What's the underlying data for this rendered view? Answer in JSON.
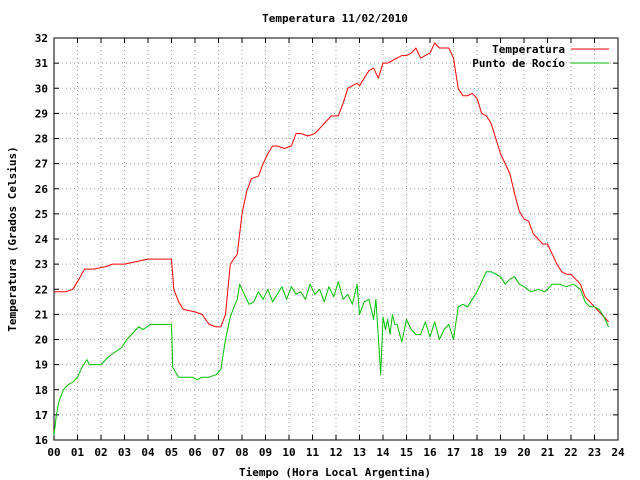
{
  "chart_data": {
    "type": "line",
    "title": "Temperatura 11/02/2010",
    "xlabel": "Tiempo (Hora Local Argentina)",
    "ylabel": "Temperatura (Grados Celsius)",
    "xlim": [
      0,
      24
    ],
    "ylim": [
      16,
      32
    ],
    "x_ticks": [
      0,
      1,
      2,
      3,
      4,
      5,
      6,
      7,
      8,
      9,
      10,
      11,
      12,
      13,
      14,
      15,
      16,
      17,
      18,
      19,
      20,
      21,
      22,
      23,
      24
    ],
    "x_tick_labels": [
      "00",
      "01",
      "02",
      "03",
      "04",
      "05",
      "06",
      "07",
      "08",
      "09",
      "10",
      "11",
      "12",
      "13",
      "14",
      "15",
      "16",
      "17",
      "18",
      "19",
      "20",
      "21",
      "22",
      "23",
      "24"
    ],
    "y_ticks": [
      16,
      17,
      18,
      19,
      20,
      21,
      22,
      23,
      24,
      25,
      26,
      27,
      28,
      29,
      30,
      31,
      32
    ],
    "grid": true,
    "legend_position": "top-right",
    "series": [
      {
        "name": "Temperatura",
        "color": "#ff0000",
        "x": [
          0,
          0.5,
          0.8,
          1.0,
          1.3,
          1.7,
          2.2,
          2.5,
          3.0,
          3.5,
          4.0,
          4.5,
          4.8,
          5.0,
          5.1,
          5.3,
          5.5,
          6.0,
          6.3,
          6.6,
          6.9,
          7.1,
          7.3,
          7.5,
          7.8,
          8.0,
          8.2,
          8.4,
          8.7,
          8.9,
          9.1,
          9.3,
          9.5,
          9.8,
          10.1,
          10.3,
          10.5,
          10.8,
          11.1,
          11.3,
          11.5,
          11.8,
          12.1,
          12.3,
          12.5,
          12.7,
          12.9,
          13.0,
          13.2,
          13.4,
          13.6,
          13.8,
          14.0,
          14.2,
          14.4,
          14.6,
          14.8,
          15.0,
          15.2,
          15.4,
          15.6,
          15.8,
          16.0,
          16.2,
          16.4,
          16.6,
          16.8,
          17.0,
          17.2,
          17.4,
          17.6,
          17.8,
          18.0,
          18.2,
          18.4,
          18.6,
          18.8,
          19.0,
          19.2,
          19.4,
          19.6,
          19.8,
          20.0,
          20.2,
          20.4,
          20.6,
          20.8,
          21.0,
          21.2,
          21.4,
          21.6,
          21.8,
          22.0,
          22.2,
          22.4,
          22.6,
          22.8,
          23.0,
          23.2,
          23.4,
          23.6
        ],
        "y": [
          21.9,
          21.9,
          22.0,
          22.3,
          22.8,
          22.8,
          22.9,
          23.0,
          23.0,
          23.1,
          23.2,
          23.2,
          23.2,
          23.2,
          22.0,
          21.5,
          21.2,
          21.1,
          21.0,
          20.6,
          20.5,
          20.5,
          21.0,
          23.0,
          23.4,
          25.0,
          25.9,
          26.4,
          26.5,
          27.0,
          27.4,
          27.7,
          27.7,
          27.6,
          27.7,
          28.2,
          28.2,
          28.1,
          28.2,
          28.4,
          28.6,
          28.9,
          28.9,
          29.4,
          30.0,
          30.1,
          30.2,
          30.1,
          30.4,
          30.7,
          30.8,
          30.4,
          31.0,
          31.0,
          31.1,
          31.2,
          31.3,
          31.3,
          31.4,
          31.6,
          31.2,
          31.3,
          31.4,
          31.8,
          31.6,
          31.6,
          31.6,
          31.2,
          30.0,
          29.7,
          29.7,
          29.8,
          29.6,
          29.0,
          28.9,
          28.6,
          28.0,
          27.4,
          27.0,
          26.6,
          25.8,
          25.1,
          24.8,
          24.7,
          24.2,
          24.0,
          23.8,
          23.8,
          23.4,
          23.0,
          22.7,
          22.6,
          22.6,
          22.4,
          22.2,
          21.7,
          21.5,
          21.3,
          21.1,
          20.9,
          20.7
        ]
      },
      {
        "name": "Punto de Rocío",
        "color": "#00c000",
        "x": [
          0,
          0.1,
          0.2,
          0.4,
          0.6,
          0.8,
          1.0,
          1.2,
          1.4,
          1.5,
          1.7,
          2.0,
          2.3,
          2.6,
          2.9,
          3.1,
          3.3,
          3.6,
          3.8,
          4.1,
          4.4,
          4.7,
          5.0,
          5.05,
          5.3,
          5.6,
          5.9,
          6.1,
          6.3,
          6.6,
          6.9,
          7.1,
          7.3,
          7.5,
          7.7,
          7.8,
          7.9,
          8.1,
          8.3,
          8.5,
          8.7,
          8.9,
          9.1,
          9.3,
          9.5,
          9.7,
          9.9,
          10.1,
          10.3,
          10.5,
          10.7,
          10.9,
          11.1,
          11.3,
          11.5,
          11.7,
          11.9,
          12.1,
          12.3,
          12.5,
          12.7,
          12.9,
          13.0,
          13.2,
          13.4,
          13.6,
          13.7,
          13.8,
          13.9,
          14.0,
          14.1,
          14.2,
          14.3,
          14.4,
          14.5,
          14.6,
          14.8,
          15.0,
          15.2,
          15.4,
          15.6,
          15.8,
          16.0,
          16.2,
          16.4,
          16.6,
          16.8,
          17.0,
          17.2,
          17.4,
          17.6,
          17.8,
          18.0,
          18.2,
          18.4,
          18.6,
          18.8,
          19.0,
          19.2,
          19.4,
          19.6,
          19.8,
          20.0,
          20.3,
          20.6,
          20.9,
          21.2,
          21.5,
          21.8,
          22.1,
          22.4,
          22.6,
          22.8,
          23.0,
          23.2,
          23.4,
          23.6
        ],
        "y": [
          16.2,
          17.0,
          17.5,
          18.0,
          18.2,
          18.3,
          18.5,
          18.9,
          19.2,
          19.0,
          19.0,
          19.0,
          19.3,
          19.5,
          19.7,
          20.0,
          20.2,
          20.5,
          20.4,
          20.6,
          20.6,
          20.6,
          20.6,
          18.9,
          18.5,
          18.5,
          18.5,
          18.4,
          18.5,
          18.5,
          18.6,
          18.8,
          20.0,
          20.9,
          21.4,
          21.6,
          22.2,
          21.8,
          21.4,
          21.5,
          21.9,
          21.6,
          22.0,
          21.5,
          21.8,
          22.1,
          21.6,
          22.1,
          21.8,
          21.9,
          21.6,
          22.2,
          21.8,
          22.0,
          21.5,
          22.1,
          21.7,
          22.3,
          21.6,
          21.8,
          21.4,
          22.2,
          21.0,
          21.5,
          21.6,
          20.8,
          21.6,
          20.1,
          18.6,
          20.9,
          20.4,
          20.8,
          20.2,
          21.0,
          20.6,
          20.6,
          19.9,
          20.8,
          20.4,
          20.2,
          20.2,
          20.7,
          20.1,
          20.7,
          20.0,
          20.4,
          20.6,
          20.0,
          21.3,
          21.4,
          21.3,
          21.6,
          21.9,
          22.3,
          22.7,
          22.7,
          22.6,
          22.5,
          22.2,
          22.4,
          22.5,
          22.2,
          22.1,
          21.9,
          22.0,
          21.9,
          22.2,
          22.2,
          22.1,
          22.2,
          22.0,
          21.5,
          21.3,
          21.3,
          21.2,
          20.9,
          20.5
        ]
      }
    ]
  }
}
